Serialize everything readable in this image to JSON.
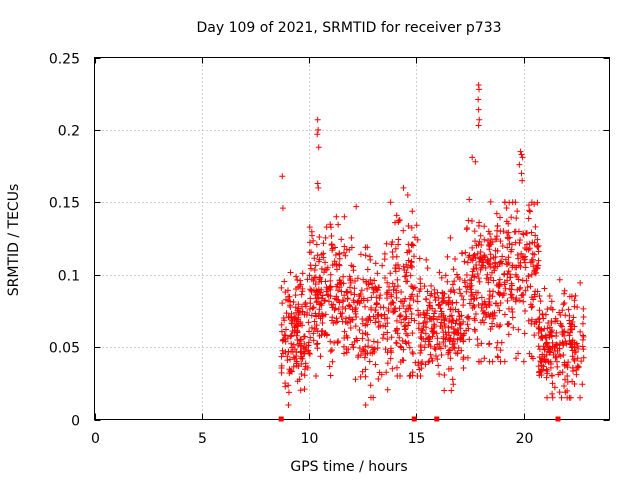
{
  "chart_data": {
    "type": "scatter",
    "title": "Day 109 of 2021, SRMTID for receiver p733",
    "xlabel": "GPS time / hours",
    "ylabel": "SRMTID / TECUs",
    "xlim": [
      0,
      24
    ],
    "ylim": [
      0,
      0.25
    ],
    "xticks": [
      0,
      5,
      10,
      15,
      20
    ],
    "yticks": [
      0,
      0.05,
      0.1,
      0.15,
      0.2,
      0.25
    ],
    "ytick_labels": [
      "0",
      "0.05",
      "0.1",
      "0.15",
      "0.2",
      "0.25"
    ],
    "grid": true,
    "marker": "+",
    "color": "#ff0000",
    "baseline_markers_x": [
      8.7,
      14.9,
      15.95,
      21.6
    ],
    "series": [
      {
        "name": "SRMTID",
        "seed": 109,
        "segments": [
          {
            "x_start": 8.7,
            "x_end": 10.0,
            "count": 170,
            "center": 0.055,
            "spread": 0.02,
            "min": 0.01,
            "max": 0.12
          },
          {
            "x_start": 10.0,
            "x_end": 12.0,
            "count": 230,
            "center": 0.085,
            "spread": 0.022,
            "min": 0.03,
            "max": 0.14
          },
          {
            "x_start": 12.0,
            "x_end": 14.0,
            "count": 190,
            "center": 0.072,
            "spread": 0.025,
            "min": 0.01,
            "max": 0.147
          },
          {
            "x_start": 14.0,
            "x_end": 15.2,
            "count": 140,
            "center": 0.085,
            "spread": 0.028,
            "min": 0.03,
            "max": 0.16
          },
          {
            "x_start": 15.2,
            "x_end": 17.2,
            "count": 230,
            "center": 0.066,
            "spread": 0.02,
            "min": 0.02,
            "max": 0.15
          },
          {
            "x_start": 17.2,
            "x_end": 19.0,
            "count": 220,
            "center": 0.092,
            "spread": 0.025,
            "min": 0.04,
            "max": 0.18
          },
          {
            "x_start": 19.0,
            "x_end": 20.7,
            "count": 180,
            "center": 0.1,
            "spread": 0.027,
            "min": 0.04,
            "max": 0.15
          },
          {
            "x_start": 20.7,
            "x_end": 22.8,
            "count": 230,
            "center": 0.052,
            "spread": 0.018,
            "min": 0.015,
            "max": 0.11
          }
        ],
        "outliers": [
          {
            "x": 8.75,
            "y": 0.168
          },
          {
            "x": 8.78,
            "y": 0.146
          },
          {
            "x": 10.4,
            "y": 0.207
          },
          {
            "x": 10.42,
            "y": 0.2
          },
          {
            "x": 10.38,
            "y": 0.197
          },
          {
            "x": 10.45,
            "y": 0.188
          },
          {
            "x": 10.4,
            "y": 0.163
          },
          {
            "x": 10.43,
            "y": 0.16
          },
          {
            "x": 17.9,
            "y": 0.231
          },
          {
            "x": 17.92,
            "y": 0.228
          },
          {
            "x": 17.88,
            "y": 0.221
          },
          {
            "x": 17.9,
            "y": 0.214
          },
          {
            "x": 17.93,
            "y": 0.207
          },
          {
            "x": 17.9,
            "y": 0.203
          },
          {
            "x": 17.6,
            "y": 0.181
          },
          {
            "x": 17.75,
            "y": 0.178
          },
          {
            "x": 19.85,
            "y": 0.185
          },
          {
            "x": 19.9,
            "y": 0.183
          },
          {
            "x": 19.95,
            "y": 0.181
          },
          {
            "x": 19.8,
            "y": 0.176
          },
          {
            "x": 19.9,
            "y": 0.17
          },
          {
            "x": 19.93,
            "y": 0.165
          },
          {
            "x": 14.4,
            "y": 0.16
          },
          {
            "x": 14.6,
            "y": 0.155
          },
          {
            "x": 13.8,
            "y": 0.15
          }
        ]
      }
    ]
  }
}
